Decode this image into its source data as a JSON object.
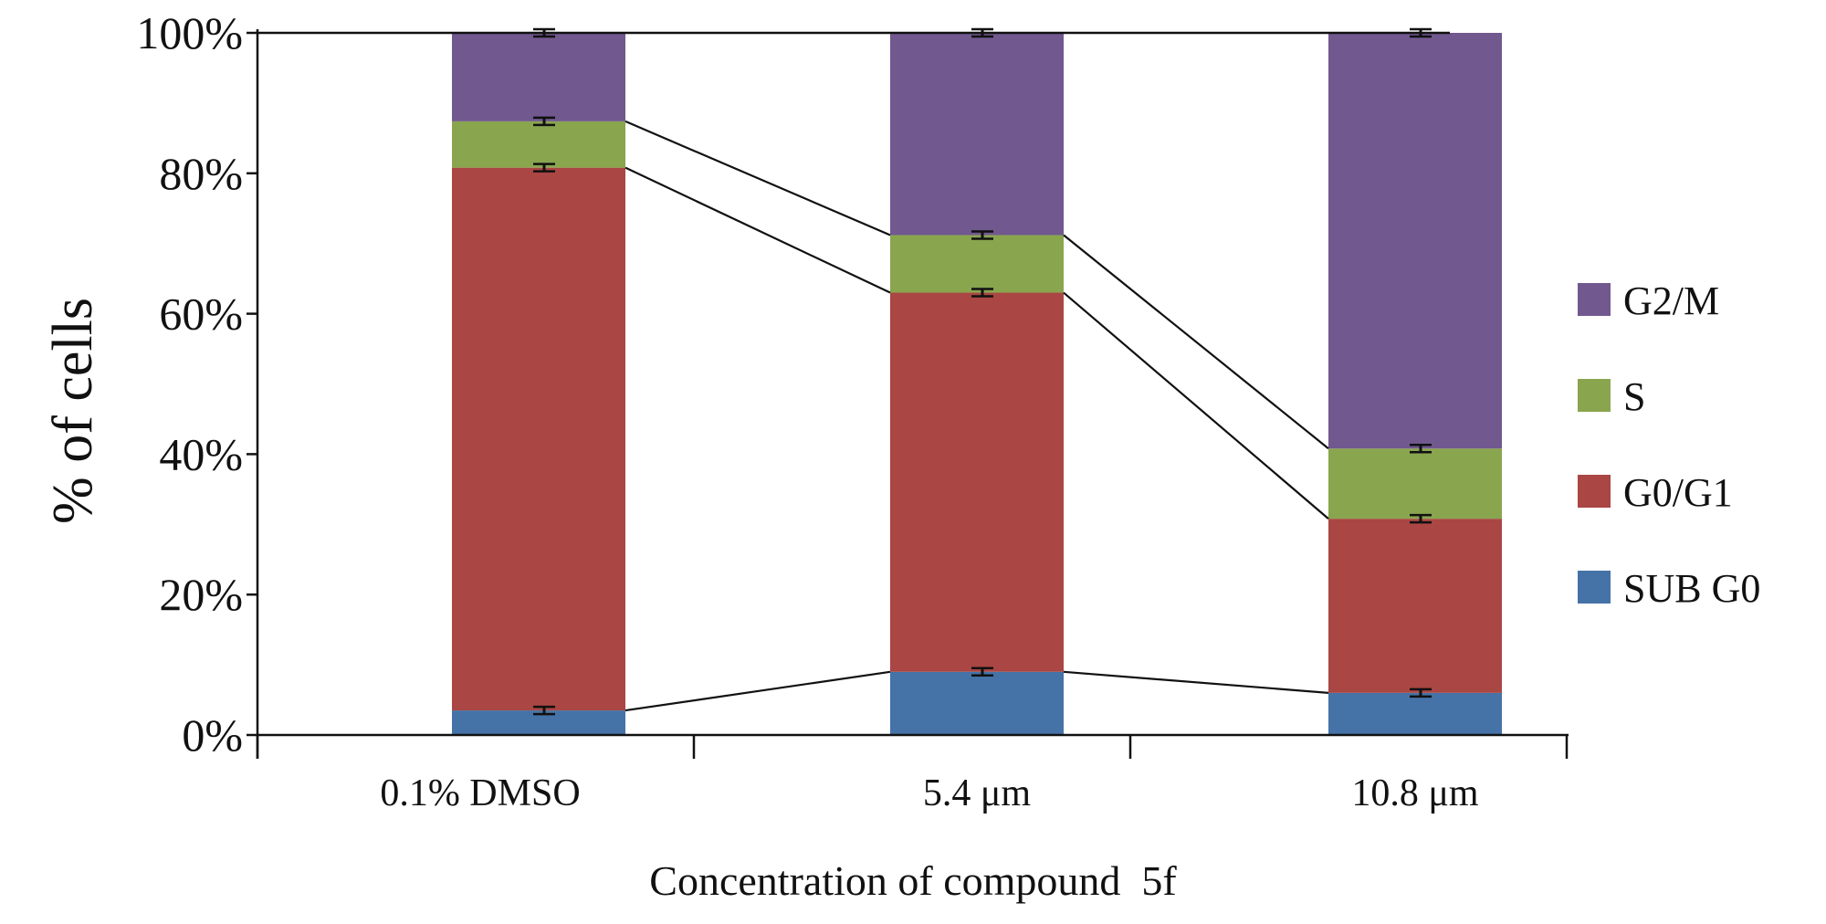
{
  "chart_data": {
    "type": "bar",
    "stacked": true,
    "normalized": true,
    "title": "",
    "xlabel": "Concentration of compound  5f",
    "ylabel": "% of cells",
    "ylim": [
      0,
      100
    ],
    "yticks": [
      "0%",
      "20%",
      "40%",
      "60%",
      "80%",
      "100%"
    ],
    "grid": false,
    "legend_position": "right",
    "categories": [
      "0.1% DMSO",
      "5.4 μm",
      "10.8 μm"
    ],
    "series": [
      {
        "name": "SUB  G0",
        "color": "#4572a7",
        "values": [
          3.5,
          9.0,
          6.0
        ]
      },
      {
        "name": "G0/G1",
        "color": "#aa4643",
        "values": [
          77.3,
          54.0,
          24.8
        ]
      },
      {
        "name": "S",
        "color": "#89a54e",
        "values": [
          6.6,
          8.2,
          10.0
        ]
      },
      {
        "name": "G2/M",
        "color": "#71588f",
        "values": [
          12.6,
          28.8,
          59.2
        ]
      }
    ],
    "error_bars_at_boundaries": true,
    "connector_lines": true
  }
}
